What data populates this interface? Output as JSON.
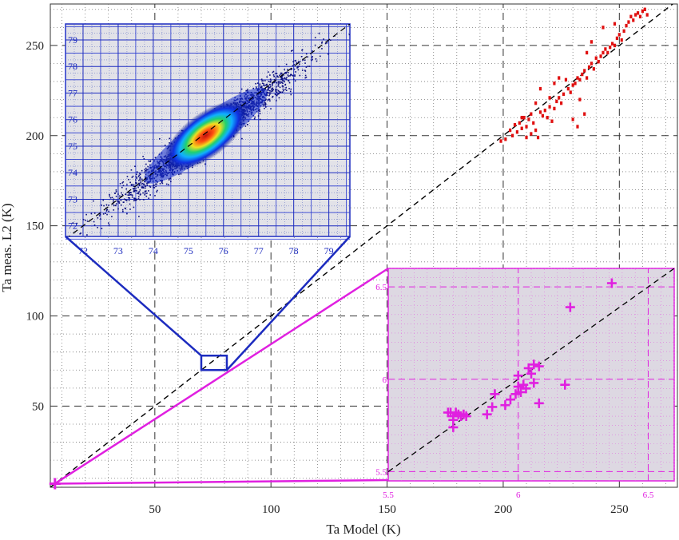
{
  "chart_data": [
    {
      "type": "scatter",
      "xlabel": "Ta Model (K)",
      "ylabel": "Ta meas. L2 (K)",
      "xlim": [
        5,
        275
      ],
      "ylim": [
        5,
        273
      ],
      "xticks": [
        50,
        100,
        150,
        200,
        250
      ],
      "yticks": [
        50,
        100,
        150,
        200,
        250
      ],
      "grid": true,
      "reference_line": "y = x",
      "series": [
        {
          "color": "#e01010",
          "marker": "dot",
          "points": [
            [
              199,
              197
            ],
            [
              201,
              198
            ],
            [
              203,
              203
            ],
            [
              204,
              200
            ],
            [
              205,
              206
            ],
            [
              206,
              202
            ],
            [
              207,
              207
            ],
            [
              208,
              204
            ],
            [
              209,
              210
            ],
            [
              210,
              205
            ],
            [
              211,
              209
            ],
            [
              212,
              212
            ],
            [
              213,
              207
            ],
            [
              214,
              203
            ],
            [
              215,
              199
            ],
            [
              216,
              213
            ],
            [
              217,
              211
            ],
            [
              218,
              214
            ],
            [
              219,
              210
            ],
            [
              220,
              216
            ],
            [
              221,
              208
            ],
            [
              222,
              215
            ],
            [
              223,
              219
            ],
            [
              224,
              221
            ],
            [
              225,
              218
            ],
            [
              226,
              223
            ],
            [
              228,
              226
            ],
            [
              229,
              224
            ],
            [
              230,
              228
            ],
            [
              231,
              229
            ],
            [
              232,
              232
            ],
            [
              233,
              231
            ],
            [
              234,
              234
            ],
            [
              235,
              236
            ],
            [
              236,
              232
            ],
            [
              237,
              238
            ],
            [
              238,
              240
            ],
            [
              239,
              237
            ],
            [
              240,
              243
            ],
            [
              241,
              241
            ],
            [
              242,
              244
            ],
            [
              243,
              246
            ],
            [
              244,
              248
            ],
            [
              245,
              246
            ],
            [
              246,
              249
            ],
            [
              247,
              251
            ],
            [
              248,
              250
            ],
            [
              249,
              254
            ],
            [
              250,
              256
            ],
            [
              251,
              253
            ],
            [
              252,
              258
            ],
            [
              253,
              261
            ],
            [
              254,
              263
            ],
            [
              255,
              266
            ],
            [
              256,
              264
            ],
            [
              257,
              267
            ],
            [
              258,
              268
            ],
            [
              259,
              266
            ],
            [
              260,
              269
            ],
            [
              261,
              270
            ],
            [
              262,
              267
            ],
            [
              216,
              226
            ],
            [
              222,
              229
            ],
            [
              236,
              246
            ],
            [
              238,
              252
            ],
            [
              243,
              260
            ],
            [
              248,
              262
            ],
            [
              232,
              205
            ],
            [
              235,
              212
            ],
            [
              230,
              209
            ],
            [
              212,
              201
            ],
            [
              214,
              218
            ],
            [
              224,
              232
            ],
            [
              220,
              221
            ],
            [
              208,
              210
            ],
            [
              210,
              199
            ],
            [
              227,
              231
            ],
            [
              233,
              220
            ]
          ]
        }
      ],
      "zoom_box": {
        "x": [
          70,
          81
        ],
        "y": [
          70,
          78
        ]
      },
      "zoom_target_marker": [
        7,
        7
      ]
    },
    {
      "type": "scatter",
      "inset": "density",
      "xlim": [
        71.5,
        79.6
      ],
      "ylim": [
        71.6,
        79.6
      ],
      "xticks": [
        72,
        73,
        74,
        75,
        76,
        77,
        78,
        79
      ],
      "yticks": [
        72,
        73,
        74,
        75,
        76,
        77,
        78,
        79
      ],
      "grid": true,
      "reference_line": "y = x",
      "density_center": [
        75.5,
        75.4
      ],
      "density_colormap": [
        "#0a0a80",
        "#1040ff",
        "#10c0ff",
        "#20e060",
        "#f0f020",
        "#ff8010",
        "#d01010"
      ]
    },
    {
      "type": "scatter",
      "inset": "zoom",
      "xlim": [
        5.5,
        6.6
      ],
      "ylim": [
        5.45,
        6.6
      ],
      "xticks": [
        5.5,
        6,
        6.5
      ],
      "yticks": [
        5.5,
        6,
        6.5
      ],
      "grid": true,
      "reference_line": "y = x",
      "color": "#e020e0",
      "marker": "plus",
      "points": [
        [
          5.74,
          5.82
        ],
        [
          5.75,
          5.8
        ],
        [
          5.76,
          5.82
        ],
        [
          5.75,
          5.78
        ],
        [
          5.77,
          5.81
        ],
        [
          5.78,
          5.8
        ],
        [
          5.79,
          5.81
        ],
        [
          5.8,
          5.8
        ],
        [
          5.75,
          5.74
        ],
        [
          5.88,
          5.81
        ],
        [
          5.9,
          5.85
        ],
        [
          5.91,
          5.92
        ],
        [
          5.95,
          5.86
        ],
        [
          5.97,
          5.89
        ],
        [
          5.99,
          5.92
        ],
        [
          6.01,
          5.93
        ],
        [
          6.03,
          5.95
        ],
        [
          6.0,
          5.96
        ],
        [
          6.06,
          5.98
        ],
        [
          6.08,
          5.87
        ],
        [
          6.02,
          5.97
        ],
        [
          6.0,
          6.02
        ],
        [
          6.04,
          6.06
        ],
        [
          6.06,
          6.08
        ],
        [
          6.08,
          6.07
        ],
        [
          6.05,
          6.03
        ],
        [
          6.18,
          5.97
        ],
        [
          6.2,
          6.39
        ],
        [
          6.36,
          6.52
        ],
        [
          5.73,
          5.82
        ]
      ]
    }
  ]
}
